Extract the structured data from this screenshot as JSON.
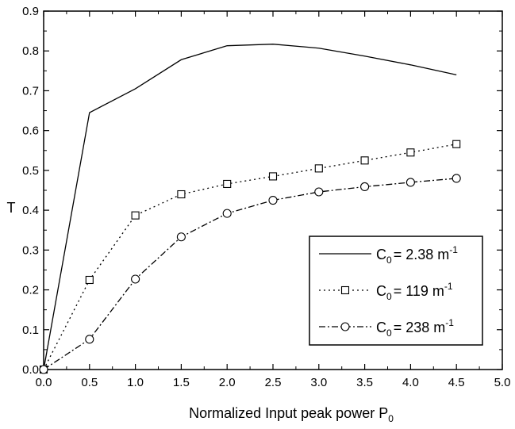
{
  "chart_data": {
    "type": "line",
    "xlabel": "Normalized Input peak power P",
    "xlabel_sub": "0",
    "ylabel": "T",
    "xlim": [
      0.0,
      5.0
    ],
    "ylim": [
      0.0,
      0.9
    ],
    "x_ticks": [
      "0.0",
      "0.5",
      "1.0",
      "1.5",
      "2.0",
      "2.5",
      "3.0",
      "3.5",
      "4.0",
      "4.5",
      "5.0"
    ],
    "y_ticks": [
      "0.0",
      "0.1",
      "0.2",
      "0.3",
      "0.4",
      "0.5",
      "0.6",
      "0.7",
      "0.8",
      "0.9"
    ],
    "grid": false,
    "legend_position": "center-right",
    "series": [
      {
        "label_main": "C",
        "label_sub": "0",
        "label_value": "= 2.38 m",
        "label_sup": "-1",
        "line_style": "solid",
        "marker": "none",
        "x": [
          0.0,
          0.5,
          1.0,
          1.5,
          2.0,
          2.5,
          3.0,
          3.5,
          4.0,
          4.5
        ],
        "y": [
          0.0,
          0.645,
          0.705,
          0.778,
          0.813,
          0.817,
          0.807,
          0.787,
          0.765,
          0.74
        ]
      },
      {
        "label_main": "C",
        "label_sub": "0",
        "label_value": "= 119 m",
        "label_sup": "-1",
        "line_style": "dotted",
        "marker": "square",
        "x": [
          0.0,
          0.5,
          1.0,
          1.5,
          2.0,
          2.5,
          3.0,
          3.5,
          4.0,
          4.5
        ],
        "y": [
          0.0,
          0.225,
          0.387,
          0.44,
          0.466,
          0.485,
          0.505,
          0.525,
          0.545,
          0.566
        ]
      },
      {
        "label_main": "C",
        "label_sub": "0",
        "label_value": "= 238 m",
        "label_sup": "-1",
        "line_style": "dash-dot",
        "marker": "circle",
        "x": [
          0.0,
          0.5,
          1.0,
          1.5,
          2.0,
          2.5,
          3.0,
          3.5,
          4.0,
          4.5
        ],
        "y": [
          0.0,
          0.076,
          0.227,
          0.333,
          0.392,
          0.425,
          0.446,
          0.459,
          0.47,
          0.48
        ]
      }
    ]
  }
}
